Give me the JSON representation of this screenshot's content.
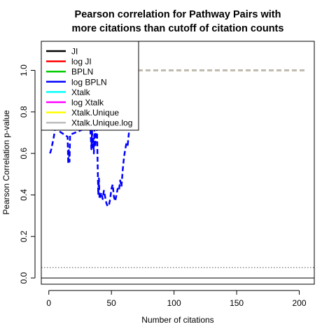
{
  "chart_data": {
    "type": "line",
    "title": [
      "Pearson correlation for Pathway Pairs with",
      "more citations than cutoff of citation counts"
    ],
    "xlabel": "Number of citations",
    "ylabel": "Pearson Correlation p-value",
    "xlim": [
      -6,
      212
    ],
    "ylim": [
      -0.03,
      1.14
    ],
    "xticks": [
      "0",
      "50",
      "100",
      "150",
      "200"
    ],
    "yticks": [
      "0.0",
      "0.2",
      "0.4",
      "0.6",
      "0.8",
      "1.0"
    ],
    "reference_lines": [
      {
        "y": 0.05,
        "style": "dotted",
        "color": "#555555"
      },
      {
        "y": 0.0,
        "style": "solid",
        "color": "#000000"
      }
    ],
    "legend_position": "top-left",
    "series": [
      {
        "name": "JI",
        "color": "#000000",
        "x": [
          65,
          205
        ],
        "values": [
          1.0,
          1.0
        ]
      },
      {
        "name": "log JI",
        "color": "#ff0000",
        "x": [
          65,
          205
        ],
        "values": [
          1.0,
          1.0
        ]
      },
      {
        "name": "BPLN",
        "color": "#00cd00",
        "x": [
          65,
          205
        ],
        "values": [
          1.0,
          1.0
        ]
      },
      {
        "name": "log BPLN",
        "color": "#0000ff",
        "x": [
          1,
          2,
          3,
          4,
          5,
          15,
          15.5,
          16,
          16.5,
          17,
          33,
          33.5,
          34,
          34.5,
          35,
          35.5,
          36,
          36.5,
          37,
          37.5,
          38,
          38.5,
          39,
          39.5,
          40,
          40.5,
          41,
          42,
          43,
          44,
          45,
          46,
          47,
          48,
          49,
          50,
          51,
          52,
          53,
          54,
          55,
          56,
          57,
          58,
          59,
          60,
          61,
          62,
          63,
          64
        ],
        "values": [
          0.6,
          0.62,
          0.65,
          0.68,
          0.72,
          0.68,
          0.55,
          0.62,
          0.56,
          0.69,
          0.73,
          0.68,
          0.62,
          0.71,
          0.63,
          0.67,
          0.6,
          0.72,
          0.63,
          0.69,
          0.74,
          0.7,
          0.55,
          0.4,
          0.48,
          0.38,
          0.39,
          0.41,
          0.38,
          0.42,
          0.39,
          0.36,
          0.345,
          0.35,
          0.38,
          0.43,
          0.45,
          0.39,
          0.37,
          0.4,
          0.43,
          0.42,
          0.47,
          0.44,
          0.52,
          0.58,
          0.62,
          0.65,
          0.64,
          0.7
        ]
      },
      {
        "name": "Xtalk",
        "color": "#00ffff",
        "x": [
          65,
          205
        ],
        "values": [
          1.0,
          1.0
        ]
      },
      {
        "name": "log Xtalk",
        "color": "#ff00ff",
        "x": [
          65,
          205
        ],
        "values": [
          1.0,
          1.0
        ]
      },
      {
        "name": "Xtalk.Unique",
        "color": "#ffff00",
        "x": [
          65,
          205
        ],
        "values": [
          1.0,
          1.0
        ]
      },
      {
        "name": "Xtalk.Unique.log",
        "color": "#bebebe",
        "x": [
          65,
          205
        ],
        "values": [
          1.0,
          1.0
        ]
      }
    ]
  }
}
